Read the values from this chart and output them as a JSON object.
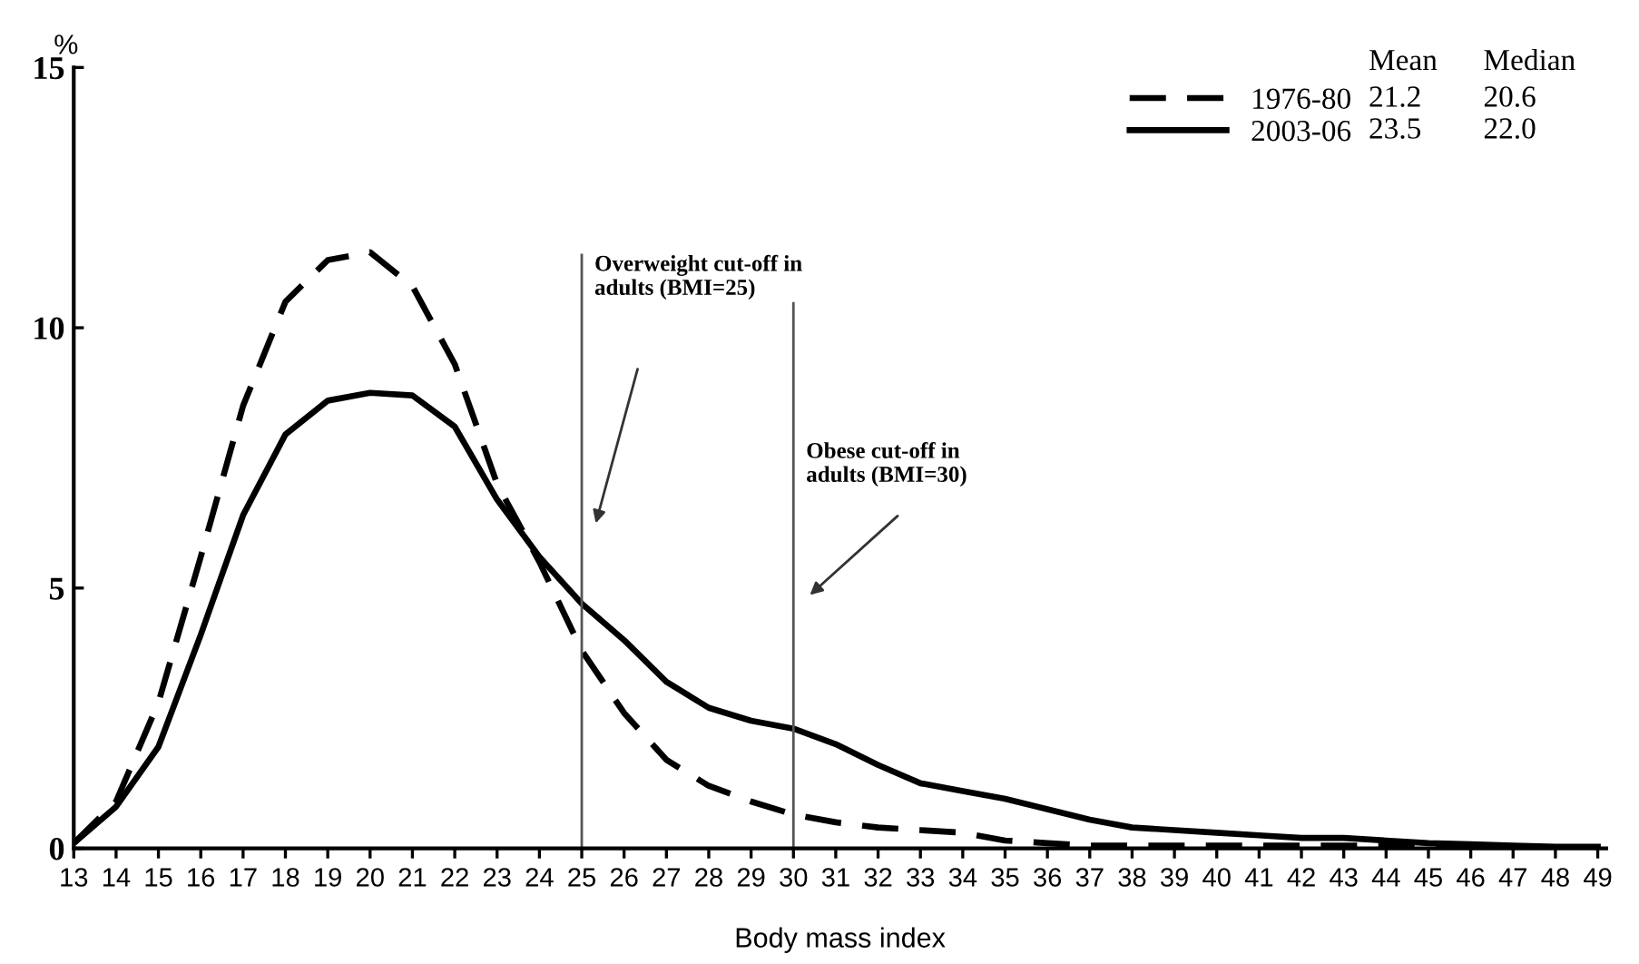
{
  "chart_data": {
    "type": "line",
    "xlabel": "Body mass index",
    "ylabel": "%",
    "x": [
      13,
      14,
      15,
      16,
      17,
      18,
      19,
      20,
      21,
      22,
      23,
      24,
      25,
      26,
      27,
      28,
      29,
      30,
      31,
      32,
      33,
      34,
      35,
      36,
      37,
      38,
      39,
      40,
      41,
      42,
      43,
      44,
      45,
      46,
      47,
      48,
      49
    ],
    "series": [
      {
        "name": "1976-80",
        "color": "#000000",
        "line_style": "dashed",
        "values": [
          0.1,
          0.9,
          2.8,
          5.6,
          8.5,
          10.5,
          11.3,
          11.45,
          10.8,
          9.3,
          7.0,
          5.5,
          3.8,
          2.6,
          1.7,
          1.2,
          0.9,
          0.65,
          0.5,
          0.4,
          0.35,
          0.3,
          0.15,
          0.1,
          0.05,
          0.05,
          0.05,
          0.05,
          0.05,
          0.05,
          0.05,
          0.05,
          0.03,
          0.03,
          0.02,
          0.02,
          0.02
        ]
      },
      {
        "name": "2003-06",
        "color": "#000000",
        "line_style": "solid",
        "values": [
          0.1,
          0.8,
          1.95,
          4.1,
          6.4,
          7.95,
          8.6,
          8.75,
          8.7,
          8.1,
          6.7,
          5.6,
          4.7,
          4.0,
          3.2,
          2.7,
          2.45,
          2.3,
          2.0,
          1.6,
          1.25,
          1.1,
          0.95,
          0.75,
          0.55,
          0.4,
          0.35,
          0.3,
          0.25,
          0.2,
          0.2,
          0.15,
          0.1,
          0.08,
          0.05,
          0.03,
          0.03
        ]
      }
    ],
    "xlim": [
      13,
      49.2
    ],
    "xticks": [
      13,
      14,
      15,
      16,
      17,
      18,
      19,
      20,
      21,
      22,
      23,
      24,
      25,
      26,
      27,
      28,
      29,
      30,
      31,
      32,
      33,
      34,
      35,
      36,
      37,
      38,
      39,
      40,
      41,
      42,
      43,
      44,
      45,
      46,
      47,
      48,
      49
    ],
    "ylim": [
      0,
      15
    ],
    "yticks": [
      0,
      5,
      10,
      15
    ],
    "ref_lines": [
      {
        "axis": "x",
        "value": 25,
        "label": "Overweight cut-off in\nadults (BMI=25)",
        "color": "#555555"
      },
      {
        "axis": "x",
        "value": 30,
        "label": "Obese cut-off in\nadults (BMI=30)",
        "color": "#555555"
      }
    ],
    "annotations": [
      "Mean",
      "Median",
      "21.2",
      "20.6",
      "23.5",
      "22.0"
    ],
    "legend": "top right",
    "grid": false,
    "marker": "none"
  }
}
